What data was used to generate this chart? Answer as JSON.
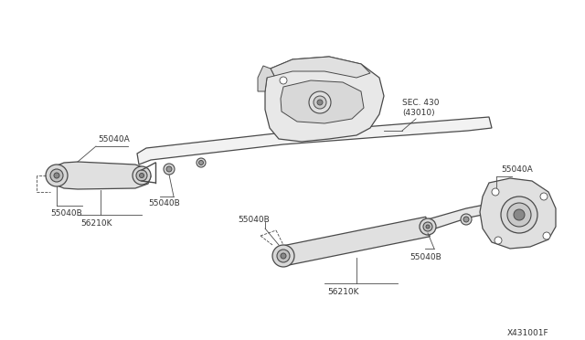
{
  "bg_color": "#ffffff",
  "line_color": "#4a4a4a",
  "text_color": "#333333",
  "diagram_id": "X431001F",
  "figsize": [
    6.4,
    3.72
  ],
  "dpi": 100,
  "labels": [
    "55040A",
    "55040B",
    "55040B",
    "56210K",
    "SEC. 430\n(43010)",
    "55040B",
    "55040B",
    "55040A",
    "56210K"
  ]
}
